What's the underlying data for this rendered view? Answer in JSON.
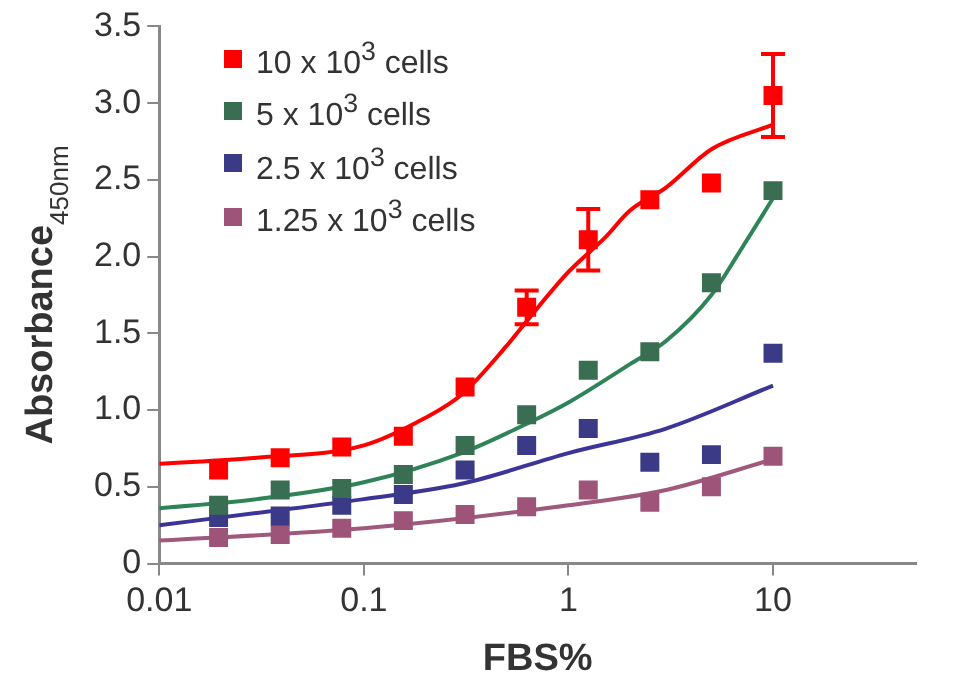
{
  "chart_data": {
    "type": "scatter",
    "xlabel": "FBS%",
    "ylabel": "Absorbance$_{450nm}$",
    "log": "x",
    "grid": false,
    "legend": "top left",
    "marker": "square",
    "x": [
      0.0195,
      0.039,
      0.078,
      0.156,
      0.3125,
      0.625,
      1.25,
      2.5,
      5,
      10
    ],
    "xlim": [
      0.01,
      50
    ],
    "xticks": [
      0.01,
      0.1,
      1,
      10
    ],
    "ylim": [
      0,
      3.5
    ],
    "yticks": [
      0,
      0.5,
      {
        "value": 1,
        "label": "1.0"
      },
      1.5,
      {
        "value": 2,
        "label": "2.0"
      },
      2.5,
      {
        "value": 3,
        "label": "3.0"
      },
      3.5
    ],
    "series": [
      {
        "name": "10 x 10$^{3}$ cells",
        "color": "#ff0000",
        "values": [
          0.61,
          0.69,
          0.76,
          0.83,
          1.15,
          1.67,
          2.11,
          2.37,
          2.48,
          3.05
        ],
        "errors": [
          null,
          null,
          null,
          null,
          null,
          0.11,
          0.2,
          null,
          null,
          0.27
        ]
      },
      {
        "name": "5 x 10$^{3}$ cells",
        "color": "#3a6e52",
        "values": [
          0.38,
          0.48,
          0.49,
          0.58,
          0.77,
          0.97,
          1.26,
          1.38,
          1.83,
          2.43
        ]
      },
      {
        "name": "2.5 x 10$^{3}$ cells",
        "color": "#3b3a86",
        "values": [
          0.3,
          0.31,
          0.38,
          0.45,
          0.61,
          0.77,
          0.88,
          0.66,
          0.71,
          1.37
        ]
      },
      {
        "name": "1.25 x 10$^{3}$ cells",
        "color": "#9e5478",
        "values": [
          0.17,
          0.19,
          0.23,
          0.28,
          0.32,
          0.37,
          0.48,
          0.4,
          0.5,
          0.7
        ]
      },
      {
        "type": "line",
        "marker": "none",
        "color": "#ff0000",
        "x": [
          0.01,
          0.03,
          0.1,
          0.2,
          0.3,
          0.5,
          0.6,
          1,
          1.5,
          2,
          3,
          5,
          10
        ],
        "values": [
          0.65,
          0.69,
          0.77,
          0.95,
          1.1,
          1.42,
          1.55,
          1.9,
          2.12,
          2.3,
          2.45,
          2.7,
          2.86
        ]
      },
      {
        "type": "line",
        "marker": "none",
        "color": "#2e8457",
        "x": [
          0.01,
          0.03,
          0.1,
          0.3,
          0.6,
          1,
          2,
          3,
          5,
          7,
          10
        ],
        "values": [
          0.36,
          0.42,
          0.53,
          0.72,
          0.9,
          1.05,
          1.3,
          1.45,
          1.75,
          2.05,
          2.38
        ]
      },
      {
        "type": "line",
        "marker": "none",
        "color": "#3a3596",
        "x": [
          0.01,
          0.03,
          0.1,
          0.3,
          1,
          3,
          10
        ],
        "values": [
          0.25,
          0.33,
          0.42,
          0.52,
          0.72,
          0.88,
          1.16
        ]
      },
      {
        "type": "line",
        "marker": "none",
        "color": "#a0597c",
        "x": [
          0.01,
          0.1,
          1,
          3,
          10
        ],
        "values": [
          0.15,
          0.23,
          0.38,
          0.48,
          0.68
        ]
      }
    ]
  }
}
